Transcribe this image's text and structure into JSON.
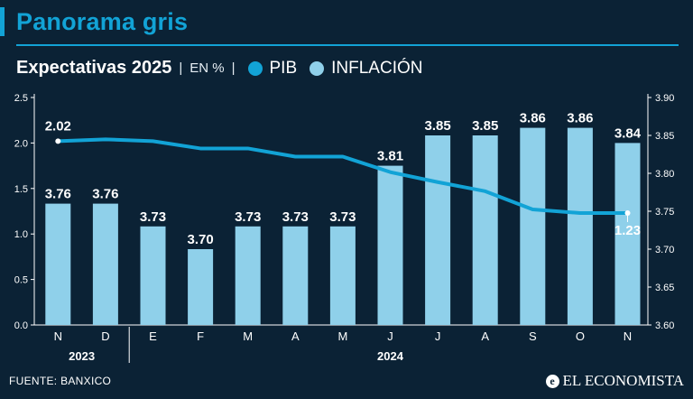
{
  "title": "Panorama gris",
  "subtitle": {
    "main": "Expectativas 2025",
    "separator": "|",
    "unit": "EN %"
  },
  "legend": [
    {
      "name": "PIB",
      "color": "#12a3d6"
    },
    {
      "name": "INFLACIÓN",
      "color": "#8fd0ea"
    }
  ],
  "source": "FUENTE: BANXICO",
  "brand": {
    "icon_glyph": "e",
    "text": "EL ECONOMISTA"
  },
  "chart_data": {
    "type": "bar",
    "categories": [
      "N",
      "D",
      "E",
      "F",
      "M",
      "A",
      "M",
      "J",
      "J",
      "A",
      "S",
      "O",
      "N"
    ],
    "years": [
      {
        "label": "2023",
        "from": 0,
        "to": 1
      },
      {
        "label": "2024",
        "from": 2,
        "to": 12
      }
    ],
    "series": [
      {
        "name": "INFLACIÓN",
        "kind": "bar",
        "axis": "right",
        "color": "#8fd0ea",
        "values": [
          3.76,
          3.76,
          3.73,
          3.7,
          3.73,
          3.73,
          3.73,
          3.81,
          3.85,
          3.85,
          3.86,
          3.86,
          3.84
        ],
        "labels": [
          "3.76",
          "3.76",
          "3.73",
          "3.70",
          "3.73",
          "3.73",
          "3.73",
          "3.81",
          "3.85",
          "3.85",
          "3.86",
          "3.86",
          "3.84"
        ]
      },
      {
        "name": "PIB",
        "kind": "line",
        "axis": "left",
        "color": "#12a3d6",
        "values": [
          2.02,
          2.04,
          2.02,
          1.94,
          1.94,
          1.85,
          1.85,
          1.68,
          1.57,
          1.47,
          1.27,
          1.23,
          1.23
        ],
        "labeled_points": [
          {
            "index": 0,
            "label": "2.02"
          },
          {
            "index": 12,
            "label": "1.23"
          }
        ]
      }
    ],
    "y_left": {
      "min": 0,
      "max": 2.5,
      "ticks": [
        "0.0",
        "0.5",
        "1.0",
        "1.5",
        "2.0",
        "2.5"
      ]
    },
    "y_right": {
      "min": 3.6,
      "max": 3.9,
      "ticks": [
        "3.60",
        "3.65",
        "3.70",
        "3.75",
        "3.80",
        "3.85",
        "3.90"
      ]
    }
  }
}
